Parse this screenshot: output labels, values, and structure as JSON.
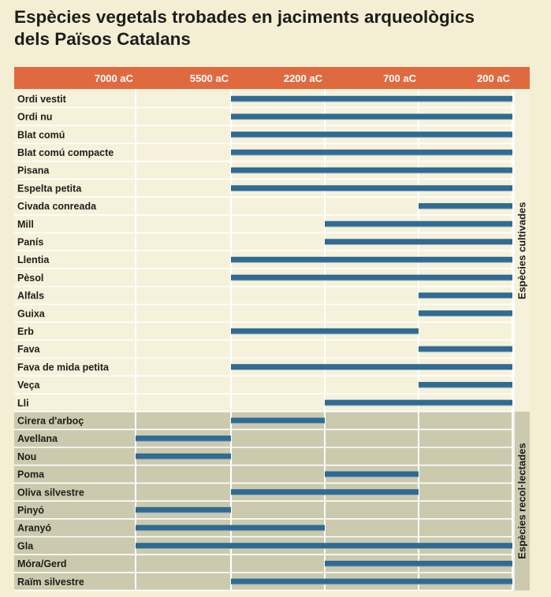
{
  "title": {
    "line1": "Espècies vegetals trobades en jaciments arqueològics",
    "line2": "dels Països Catalans"
  },
  "chart_data": {
    "type": "bar",
    "subtype": "timeline-range",
    "x_ticks": [
      "7000 aC",
      "5500 aC",
      "2200 aC",
      "700 aC",
      "200 aC"
    ],
    "colors": {
      "header": "#e06a40",
      "bar": "#2f6b93",
      "cultivated_bg": "#f6f1da",
      "gathered_bg": "#cbcaae",
      "gridline": "#ffffff"
    },
    "groups": [
      {
        "label": "Espècies cultivades",
        "items": [
          {
            "name": "Ordi vestit",
            "from": "5500 aC",
            "to": "200 aC"
          },
          {
            "name": "Ordi nu",
            "from": "5500 aC",
            "to": "200 aC"
          },
          {
            "name": "Blat comú",
            "from": "5500 aC",
            "to": "200 aC"
          },
          {
            "name": "Blat comú compacte",
            "from": "5500 aC",
            "to": "200 aC"
          },
          {
            "name": "Pisana",
            "from": "5500 aC",
            "to": "200 aC"
          },
          {
            "name": "Espelta petita",
            "from": "5500 aC",
            "to": "200 aC"
          },
          {
            "name": "Civada conreada",
            "from": "700 aC",
            "to": "200 aC"
          },
          {
            "name": "Mill",
            "from": "2200 aC",
            "to": "200 aC"
          },
          {
            "name": "Panís",
            "from": "2200 aC",
            "to": "200 aC"
          },
          {
            "name": "Llentia",
            "from": "5500 aC",
            "to": "200 aC"
          },
          {
            "name": "Pèsol",
            "from": "5500 aC",
            "to": "200 aC"
          },
          {
            "name": "Alfals",
            "from": "700 aC",
            "to": "200 aC"
          },
          {
            "name": "Guixa",
            "from": "700 aC",
            "to": "200 aC"
          },
          {
            "name": "Erb",
            "from": "5500 aC",
            "to": "700 aC"
          },
          {
            "name": "Fava",
            "from": "700 aC",
            "to": "200 aC"
          },
          {
            "name": "Fava de mida petita",
            "from": "5500 aC",
            "to": "200 aC"
          },
          {
            "name": "Veça",
            "from": "700 aC",
            "to": "200 aC"
          },
          {
            "name": "Lli",
            "from": "2200 aC",
            "to": "200 aC"
          }
        ]
      },
      {
        "label": "Espècies recol·lectades",
        "items": [
          {
            "name": "Cirera d'arboç",
            "from": "5500 aC",
            "to": "2200 aC"
          },
          {
            "name": "Avellana",
            "from": "7000 aC",
            "to": "5500 aC"
          },
          {
            "name": "Nou",
            "from": "7000 aC",
            "to": "5500 aC"
          },
          {
            "name": "Poma",
            "from": "2200 aC",
            "to": "700 aC"
          },
          {
            "name": "Oliva silvestre",
            "from": "5500 aC",
            "to": "700 aC"
          },
          {
            "name": "Pinyó",
            "from": "7000 aC",
            "to": "5500 aC"
          },
          {
            "name": "Aranyó",
            "from": "7000 aC",
            "to": "2200 aC"
          },
          {
            "name": "Gla",
            "from": "7000 aC",
            "to": "200 aC"
          },
          {
            "name": "Móra/Gerd",
            "from": "2200 aC",
            "to": "200 aC"
          },
          {
            "name": "Raïm silvestre",
            "from": "5500 aC",
            "to": "200 aC"
          }
        ]
      }
    ]
  }
}
